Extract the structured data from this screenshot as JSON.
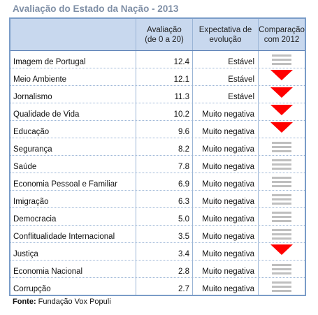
{
  "title": "Avaliação do Estado da Nação - 2013",
  "headers": {
    "col2_line1": "Avaliação",
    "col2_line2": "(de 0 a 20)",
    "col3_line1": "Expectativa de",
    "col3_line2": "evolução",
    "col4_line1": "Comparação",
    "col4_line2": "com 2012"
  },
  "rows": [
    {
      "label": "Imagem de Portugal",
      "score": "12.4",
      "expectation": "Estável",
      "comparison": "equal"
    },
    {
      "label": "Meio Ambiente",
      "score": "12.1",
      "expectation": "Estável",
      "comparison": "down"
    },
    {
      "label": "Jornalismo",
      "score": "11.3",
      "expectation": "Estável",
      "comparison": "down"
    },
    {
      "label": "Qualidade de Vida",
      "score": "10.2",
      "expectation": "Muito negativa",
      "comparison": "down"
    },
    {
      "label": "Educação",
      "score": "9.6",
      "expectation": "Muito negativa",
      "comparison": "down"
    },
    {
      "label": "Segurança",
      "score": "8.2",
      "expectation": "Muito negativa",
      "comparison": "equal"
    },
    {
      "label": "Saúde",
      "score": "7.8",
      "expectation": "Muito negativa",
      "comparison": "equal"
    },
    {
      "label": "Economia Pessoal e Familiar",
      "score": "6.9",
      "expectation": "Muito negativa",
      "comparison": "equal"
    },
    {
      "label": "Imigração",
      "score": "6.3",
      "expectation": "Muito negativa",
      "comparison": "equal"
    },
    {
      "label": "Democracia",
      "score": "5.0",
      "expectation": "Muito negativa",
      "comparison": "equal"
    },
    {
      "label": "Conflitualidade Internacional",
      "score": "3.5",
      "expectation": "Muito negativa",
      "comparison": "equal"
    },
    {
      "label": "Justiça",
      "score": "3.4",
      "expectation": "Muito negativa",
      "comparison": "down"
    },
    {
      "label": "Economia Nacional",
      "score": "2.8",
      "expectation": "Muito negativa",
      "comparison": "equal"
    },
    {
      "label": "Corrupção",
      "score": "2.7",
      "expectation": "Muito negativa",
      "comparison": "equal"
    }
  ],
  "source_label": "Fonte:",
  "source_text": "Fundação Vox Populi",
  "icons": {
    "equal": "equal-bars-icon",
    "down": "red-down-triangle-icon"
  },
  "colors": {
    "header_bg": "#c8d8ee",
    "border": "#7a9cc8",
    "down": "#ff0000",
    "equal": "#bfbfbf",
    "title": "#7f8fa6"
  }
}
